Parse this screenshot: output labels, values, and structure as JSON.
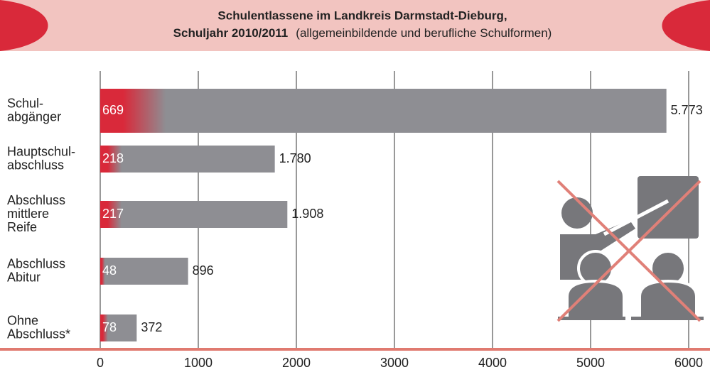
{
  "chart_data": {
    "type": "bar",
    "orientation": "horizontal",
    "title": [
      "Schulentlassene im Landkreis Darmstadt-Dieburg,",
      "Schuljahr 2010/2011"
    ],
    "subtitle": "(allgemeinbildende und berufliche Schulformen)",
    "categories": [
      [
        "Schul-",
        "abgänger"
      ],
      [
        "Hauptschul-",
        "abschluss"
      ],
      [
        "Abschluss",
        "mittlere",
        "Reife"
      ],
      [
        "Abschluss",
        "Abitur"
      ],
      [
        "Ohne",
        "Abschluss*"
      ]
    ],
    "series": [
      {
        "color": "#8e8e93",
        "values": [
          5773,
          1780,
          1908,
          896,
          372
        ],
        "value_labels": [
          "5.773",
          "1.780",
          "1.908",
          "896",
          "372"
        ]
      },
      {
        "color": "#d9293a",
        "values": [
          669,
          218,
          217,
          48,
          78
        ]
      }
    ],
    "xlim": [
      0,
      6000
    ],
    "xticks": [
      0,
      1000,
      2000,
      3000,
      4000,
      5000,
      6000
    ],
    "grid": true
  }
}
